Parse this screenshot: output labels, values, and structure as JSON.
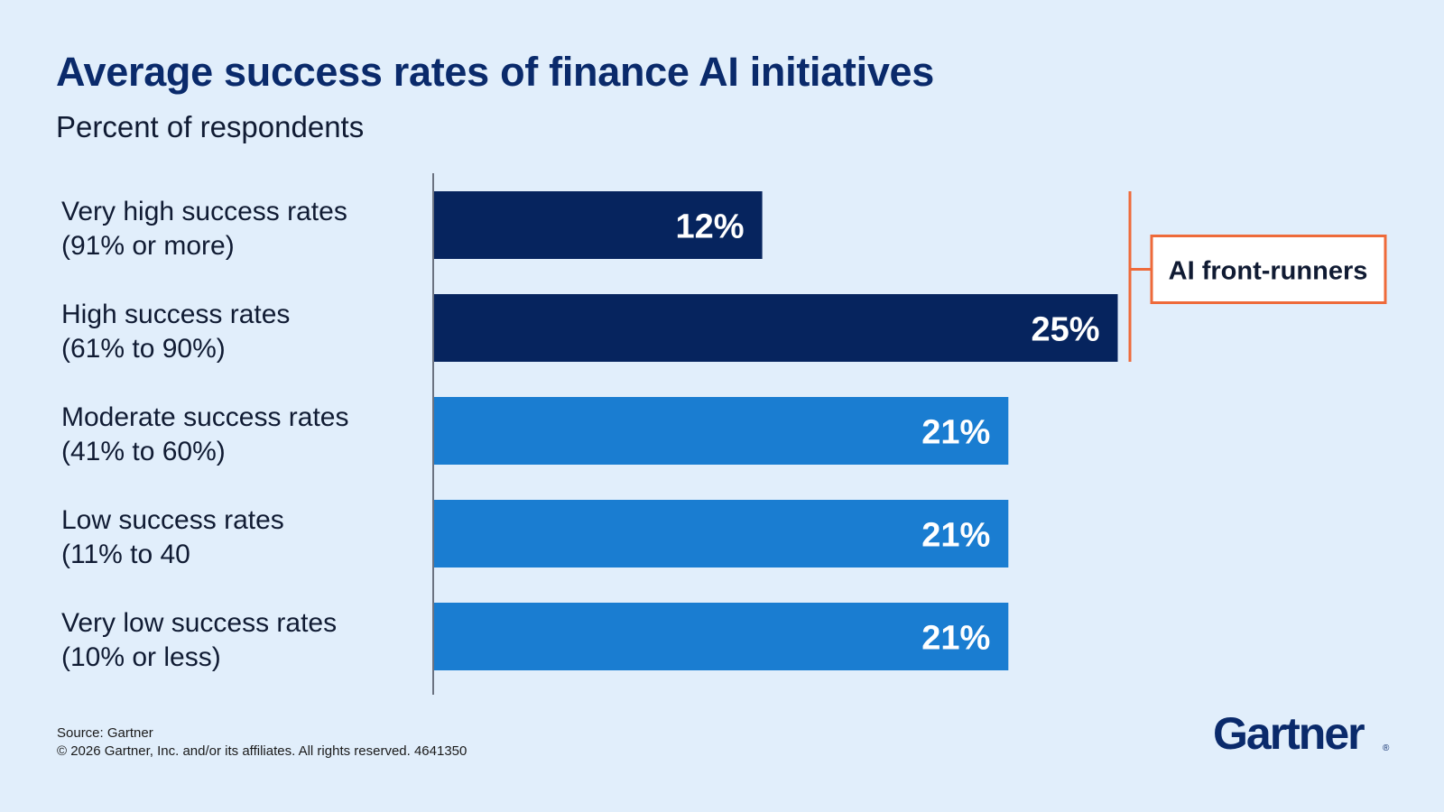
{
  "title": "Average success rates of finance AI initiatives",
  "subtitle": "Percent of respondents",
  "footer": {
    "source": "Source: Gartner",
    "copyright": "© 2026 Gartner, Inc. and/or its affiliates. All rights reserved. 4641350"
  },
  "logo": {
    "text": "Gartner",
    "mark": "®"
  },
  "colors": {
    "background": "#e1eefb",
    "dark_bar": "#06245e",
    "light_bar": "#1a7dd1",
    "accent": "#ee6a3a",
    "title": "#0a2a6b"
  },
  "chart_data": {
    "type": "bar",
    "orientation": "horizontal",
    "categories": [
      [
        "Very high success rates",
        "(91% or more)"
      ],
      [
        "High success rates",
        "(61% to 90%)"
      ],
      [
        "Moderate success rates",
        "(41% to 60%)"
      ],
      [
        "Low success rates",
        "(11% to 40"
      ],
      [
        "Very low success rates",
        "(10% or less)"
      ]
    ],
    "values": [
      12,
      25,
      21,
      21,
      21
    ],
    "data_labels": [
      "12%",
      "25%",
      "21%",
      "21%",
      "21%"
    ],
    "bar_colors": [
      "#06245e",
      "#06245e",
      "#1a7dd1",
      "#1a7dd1",
      "#1a7dd1"
    ],
    "title": "Average success rates of finance AI initiatives",
    "subtitle": "Percent of respondents",
    "xlabel": "",
    "ylabel": "",
    "xlim": [
      0,
      25
    ],
    "grid": false,
    "legend": "none",
    "annotation": {
      "text": "AI front-runners",
      "covers": [
        0,
        1
      ]
    }
  }
}
